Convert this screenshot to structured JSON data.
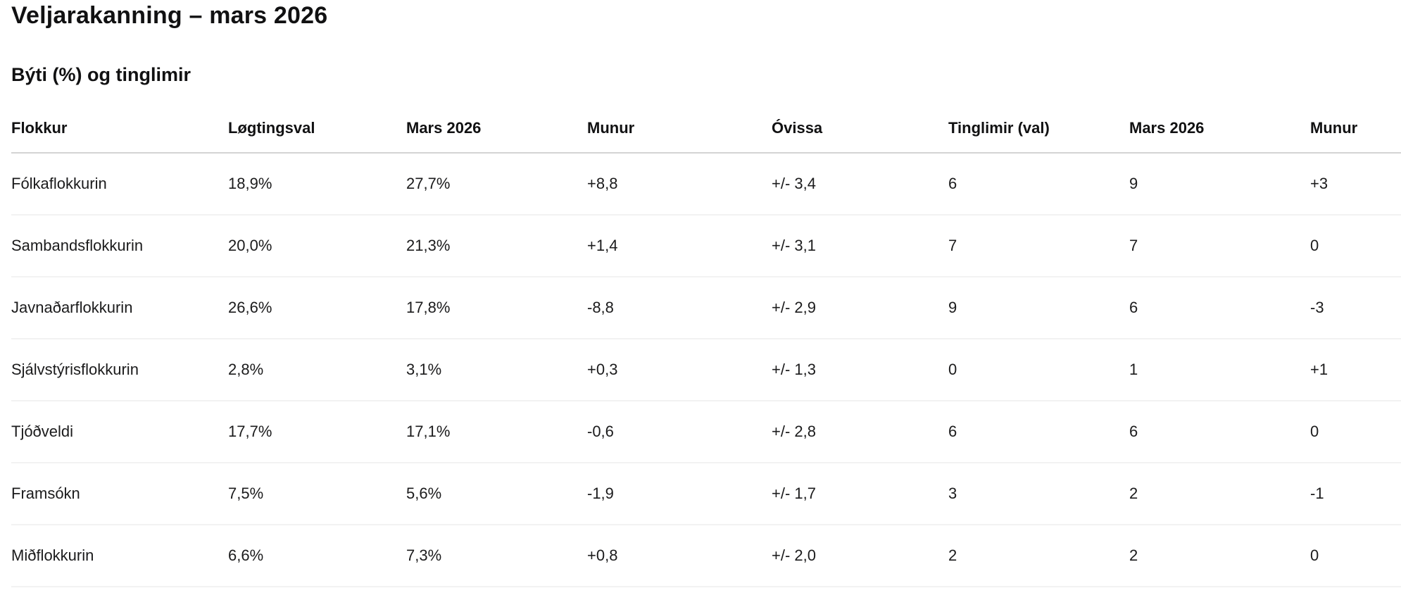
{
  "page": {
    "title": "Veljarakanning – mars 2026",
    "subtitle": "Býti (%) og tinglimir"
  },
  "table": {
    "headers": [
      "Flokkur",
      "Løgtingsval",
      "Mars 2026",
      "Munur",
      "Óvissa",
      "Tinglimir (val)",
      "Mars 2026",
      "Munur"
    ],
    "rows": [
      [
        "Fólkaflokkurin",
        "18,9%",
        "27,7%",
        "+8,8",
        "+/- 3,4",
        "6",
        "9",
        "+3"
      ],
      [
        "Sambandsflokkurin",
        "20,0%",
        "21,3%",
        "+1,4",
        "+/- 3,1",
        "7",
        "7",
        "0"
      ],
      [
        "Javnaðarflokkurin",
        "26,6%",
        "17,8%",
        "-8,8",
        "+/- 2,9",
        "9",
        "6",
        "-3"
      ],
      [
        "Sjálvstýrisflokkurin",
        "2,8%",
        "3,1%",
        "+0,3",
        "+/- 1,3",
        "0",
        "1",
        "+1"
      ],
      [
        "Tjóðveldi",
        "17,7%",
        "17,1%",
        "-0,6",
        "+/- 2,8",
        "6",
        "6",
        "0"
      ],
      [
        "Framsókn",
        "7,5%",
        "5,6%",
        "-1,9",
        "+/- 1,7",
        "3",
        "2",
        "-1"
      ],
      [
        "Miðflokkurin",
        "6,6%",
        "7,3%",
        "+0,8",
        "+/- 2,0",
        "2",
        "2",
        "0"
      ]
    ]
  },
  "colors": {
    "background": "#ffffff",
    "text": "#141415",
    "header_divider": "#d4d4d4",
    "row_divider": "#f2f2f2"
  },
  "chart_data": {
    "type": "table",
    "title": "Veljarakanning – mars 2026",
    "subtitle": "Býti (%) og tinglimir",
    "columns": [
      "Flokkur",
      "Løgtingsval",
      "Mars 2026",
      "Munur",
      "Óvissa",
      "Tinglimir (val)",
      "Mars 2026",
      "Munur"
    ],
    "rows": [
      {
        "flokkur": "Fólkaflokkurin",
        "logtingsval_pct": 18.9,
        "mars_2026_pct": 27.7,
        "munur_pct": 8.8,
        "ovissa": 3.4,
        "tinglimir_val": 6,
        "tinglimir_mars_2026": 9,
        "munur_tinglimir": 3
      },
      {
        "flokkur": "Sambandsflokkurin",
        "logtingsval_pct": 20.0,
        "mars_2026_pct": 21.3,
        "munur_pct": 1.4,
        "ovissa": 3.1,
        "tinglimir_val": 7,
        "tinglimir_mars_2026": 7,
        "munur_tinglimir": 0
      },
      {
        "flokkur": "Javnaðarflokkurin",
        "logtingsval_pct": 26.6,
        "mars_2026_pct": 17.8,
        "munur_pct": -8.8,
        "ovissa": 2.9,
        "tinglimir_val": 9,
        "tinglimir_mars_2026": 6,
        "munur_tinglimir": -3
      },
      {
        "flokkur": "Sjálvstýrisflokkurin",
        "logtingsval_pct": 2.8,
        "mars_2026_pct": 3.1,
        "munur_pct": 0.3,
        "ovissa": 1.3,
        "tinglimir_val": 0,
        "tinglimir_mars_2026": 1,
        "munur_tinglimir": 1
      },
      {
        "flokkur": "Tjóðveldi",
        "logtingsval_pct": 17.7,
        "mars_2026_pct": 17.1,
        "munur_pct": -0.6,
        "ovissa": 2.8,
        "tinglimir_val": 6,
        "tinglimir_mars_2026": 6,
        "munur_tinglimir": 0
      },
      {
        "flokkur": "Framsókn",
        "logtingsval_pct": 7.5,
        "mars_2026_pct": 5.6,
        "munur_pct": -1.9,
        "ovissa": 1.7,
        "tinglimir_val": 3,
        "tinglimir_mars_2026": 2,
        "munur_tinglimir": -1
      },
      {
        "flokkur": "Miðflokkurin",
        "logtingsval_pct": 6.6,
        "mars_2026_pct": 7.3,
        "munur_pct": 0.8,
        "ovissa": 2.0,
        "tinglimir_val": 2,
        "tinglimir_mars_2026": 2,
        "munur_tinglimir": 0
      }
    ]
  }
}
